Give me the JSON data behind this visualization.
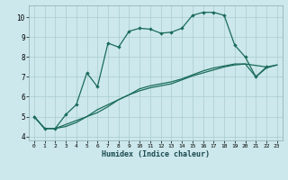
{
  "title": "",
  "xlabel": "Humidex (Indice chaleur)",
  "background_color": "#cce8ec",
  "grid_color": "#aacccc",
  "line_color": "#1a6b5a",
  "xlim": [
    -0.5,
    23.5
  ],
  "ylim": [
    3.8,
    10.6
  ],
  "xticks": [
    0,
    1,
    2,
    3,
    4,
    5,
    6,
    7,
    8,
    9,
    10,
    11,
    12,
    13,
    14,
    15,
    16,
    17,
    18,
    19,
    20,
    21,
    22,
    23
  ],
  "yticks": [
    4,
    5,
    6,
    7,
    8,
    9,
    10
  ],
  "series1_x": [
    0,
    1,
    2,
    3,
    4,
    5,
    6,
    7,
    8,
    9,
    10,
    11,
    12,
    13,
    14,
    15,
    16,
    17,
    18,
    19,
    20,
    21,
    22
  ],
  "series1_y": [
    5.0,
    4.4,
    4.4,
    5.1,
    5.6,
    7.2,
    6.5,
    8.7,
    8.5,
    9.3,
    9.45,
    9.4,
    9.2,
    9.25,
    9.45,
    10.1,
    10.25,
    10.25,
    10.1,
    8.6,
    8.0,
    7.0,
    7.5
  ],
  "series2_x": [
    0,
    1,
    2,
    3,
    4,
    5,
    6,
    7,
    8,
    9,
    10,
    11,
    12,
    13,
    14,
    15,
    16,
    17,
    18,
    19,
    20,
    22,
    23
  ],
  "series2_y": [
    5.0,
    4.4,
    4.4,
    4.6,
    4.8,
    5.0,
    5.35,
    5.6,
    5.85,
    6.1,
    6.3,
    6.45,
    6.55,
    6.65,
    6.85,
    7.05,
    7.2,
    7.35,
    7.5,
    7.6,
    7.65,
    7.5,
    7.6
  ],
  "series3_x": [
    0,
    1,
    2,
    3,
    4,
    5,
    6,
    7,
    8,
    9,
    10,
    11,
    12,
    13,
    14,
    15,
    16,
    17,
    18,
    19,
    20,
    21,
    22,
    23
  ],
  "series3_y": [
    5.0,
    4.4,
    4.4,
    4.5,
    4.7,
    5.0,
    5.2,
    5.5,
    5.85,
    6.1,
    6.4,
    6.55,
    6.65,
    6.75,
    6.9,
    7.1,
    7.3,
    7.45,
    7.55,
    7.65,
    7.65,
    7.0,
    7.45,
    7.6
  ]
}
